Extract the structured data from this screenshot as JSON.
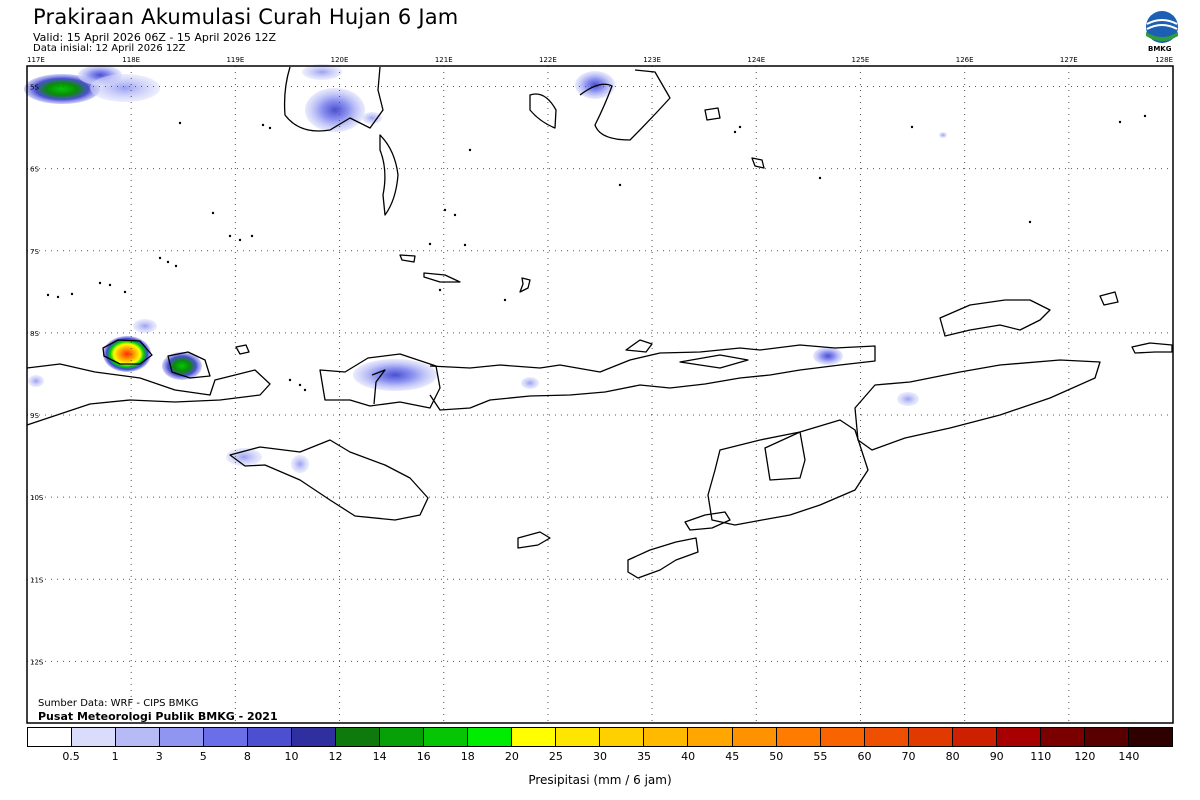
{
  "header": {
    "title": "Prakiraan Akumulasi Curah Hujan 6 Jam",
    "valid": "Valid: 15 April 2026 06Z - 15 April 2026 12Z",
    "initial": "Data inisial: 12 April 2026 12Z",
    "logo_label": "BMKG"
  },
  "map": {
    "lon_labels": [
      "117E",
      "118E",
      "119E",
      "120E",
      "121E",
      "122E",
      "123E",
      "124E",
      "125E",
      "126E",
      "127E",
      "128E"
    ],
    "lat_labels": [
      "5S",
      "6S",
      "7S",
      "8S",
      "9S",
      "10S",
      "11S",
      "12S"
    ],
    "lon_range": [
      117,
      128
    ],
    "lat_range": [
      -4.75,
      -12.75
    ],
    "grid": "dotted"
  },
  "footer": {
    "source": "Sumber Data: WRF - CIPS BMKG",
    "producer": "Pusat Meteorologi Publik BMKG - 2021"
  },
  "colorbar": {
    "title": "Presipitasi (mm / 6 jam)",
    "labels": [
      "0.5",
      "1",
      "3",
      "5",
      "8",
      "10",
      "12",
      "14",
      "16",
      "18",
      "20",
      "25",
      "30",
      "35",
      "40",
      "45",
      "50",
      "55",
      "60",
      "70",
      "80",
      "90",
      "110",
      "120",
      "140"
    ],
    "colors": [
      "#ffffff",
      "#d9dcfa",
      "#b7bbf5",
      "#8f95f1",
      "#6a6fe9",
      "#4b4fd0",
      "#2f2fa0",
      "#0e7a0e",
      "#07a007",
      "#05c505",
      "#00ec00",
      "#ffff00",
      "#ffe600",
      "#ffd000",
      "#ffba00",
      "#ffa600",
      "#ff9200",
      "#ff7c00",
      "#f96400",
      "#ee4f00",
      "#e03a00",
      "#cc2000",
      "#a80000",
      "#7a0000",
      "#580000",
      "#2f0000"
    ]
  }
}
